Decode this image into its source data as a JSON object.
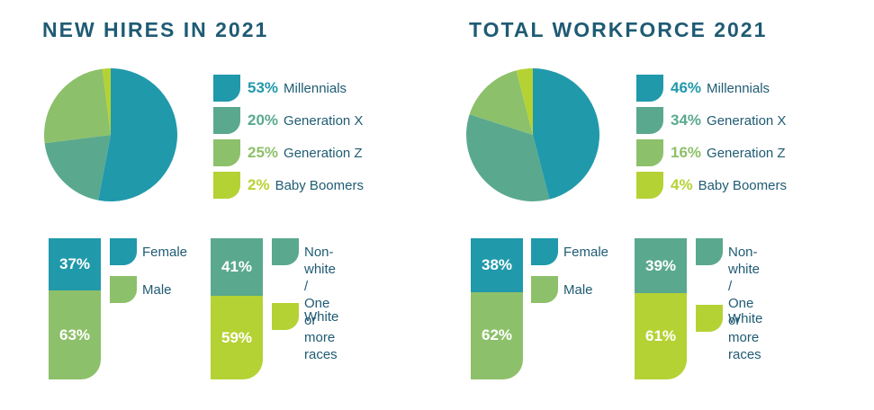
{
  "colors": {
    "teal": "#2099ab",
    "green": "#5aa98e",
    "light_green": "#8dc06a",
    "lime": "#b5d234",
    "title": "#1f5b73"
  },
  "panels": [
    {
      "title": "NEW HIRES IN 2021",
      "generations": [
        {
          "pct": "53%",
          "label": "Millennials",
          "value": 53,
          "color": "#2099ab"
        },
        {
          "pct": "20%",
          "label": "Generation X",
          "value": 20,
          "color": "#5aa98e"
        },
        {
          "pct": "25%",
          "label": "Generation Z",
          "value": 25,
          "color": "#8dc06a"
        },
        {
          "pct": "2%",
          "label": "Baby Boomers",
          "value": 2,
          "color": "#b5d234"
        }
      ],
      "gender": [
        {
          "pct": "37%",
          "label": "Female",
          "value": 37,
          "color": "#2099ab"
        },
        {
          "pct": "63%",
          "label": "Male",
          "value": 63,
          "color": "#8dc06a"
        }
      ],
      "race": [
        {
          "pct": "41%",
          "label": "Non-white /\nOne or\nmore races",
          "value": 41,
          "color": "#5aa98e"
        },
        {
          "pct": "59%",
          "label": "White",
          "value": 59,
          "color": "#b5d234"
        }
      ]
    },
    {
      "title": "TOTAL WORKFORCE 2021",
      "generations": [
        {
          "pct": "46%",
          "label": "Millennials",
          "value": 46,
          "color": "#2099ab"
        },
        {
          "pct": "34%",
          "label": "Generation X",
          "value": 34,
          "color": "#5aa98e"
        },
        {
          "pct": "16%",
          "label": "Generation Z",
          "value": 16,
          "color": "#8dc06a"
        },
        {
          "pct": "4%",
          "label": "Baby Boomers",
          "value": 4,
          "color": "#b5d234"
        }
      ],
      "gender": [
        {
          "pct": "38%",
          "label": "Female",
          "value": 38,
          "color": "#2099ab"
        },
        {
          "pct": "62%",
          "label": "Male",
          "value": 62,
          "color": "#8dc06a"
        }
      ],
      "race": [
        {
          "pct": "39%",
          "label": "Non-white /\nOne or\nmore races",
          "value": 39,
          "color": "#5aa98e"
        },
        {
          "pct": "61%",
          "label": "White",
          "value": 61,
          "color": "#b5d234"
        }
      ]
    }
  ],
  "chart_data": [
    {
      "type": "pie",
      "title": "NEW HIRES IN 2021",
      "categories": [
        "Millennials",
        "Generation X",
        "Generation Z",
        "Baby Boomers"
      ],
      "values": [
        53,
        20,
        25,
        2
      ]
    },
    {
      "type": "bar",
      "title": "NEW HIRES IN 2021 - Gender",
      "categories": [
        "Female",
        "Male"
      ],
      "values": [
        37,
        63
      ]
    },
    {
      "type": "bar",
      "title": "NEW HIRES IN 2021 - Race",
      "categories": [
        "Non-white / One or more races",
        "White"
      ],
      "values": [
        41,
        59
      ]
    },
    {
      "type": "pie",
      "title": "TOTAL WORKFORCE 2021",
      "categories": [
        "Millennials",
        "Generation X",
        "Generation Z",
        "Baby Boomers"
      ],
      "values": [
        46,
        34,
        16,
        4
      ]
    },
    {
      "type": "bar",
      "title": "TOTAL WORKFORCE 2021 - Gender",
      "categories": [
        "Female",
        "Male"
      ],
      "values": [
        38,
        62
      ]
    },
    {
      "type": "bar",
      "title": "TOTAL WORKFORCE 2021 - Race",
      "categories": [
        "Non-white / One or more races",
        "White"
      ],
      "values": [
        39,
        61
      ]
    }
  ]
}
